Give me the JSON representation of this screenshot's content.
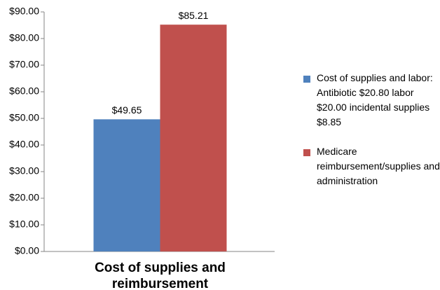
{
  "chart_data": {
    "type": "bar",
    "categories": [
      "Cost of supplies and reimbursement"
    ],
    "series": [
      {
        "name": "Cost of supplies and labor: Antibiotic $20.80 labor $20.00 incidental supplies $8.85",
        "color": "#4f81bd",
        "values": [
          49.65
        ],
        "value_labels": [
          "$49.65"
        ]
      },
      {
        "name": "Medicare reimbursement/supplies and administration",
        "color": "#c0504d",
        "values": [
          85.21
        ],
        "value_labels": [
          "$85.21"
        ]
      }
    ],
    "ylim": [
      0,
      90
    ],
    "yticks": [
      {
        "value": 0,
        "label": "$0.00"
      },
      {
        "value": 10,
        "label": "$10.00"
      },
      {
        "value": 20,
        "label": "$20.00"
      },
      {
        "value": 30,
        "label": "$30.00"
      },
      {
        "value": 40,
        "label": "$40.00"
      },
      {
        "value": 50,
        "label": "$50.00"
      },
      {
        "value": 60,
        "label": "$60.00"
      },
      {
        "value": 70,
        "label": "$70.00"
      },
      {
        "value": 80,
        "label": "$80.00"
      },
      {
        "value": 90,
        "label": "$90.00"
      }
    ],
    "grid": false,
    "legend": "right"
  }
}
